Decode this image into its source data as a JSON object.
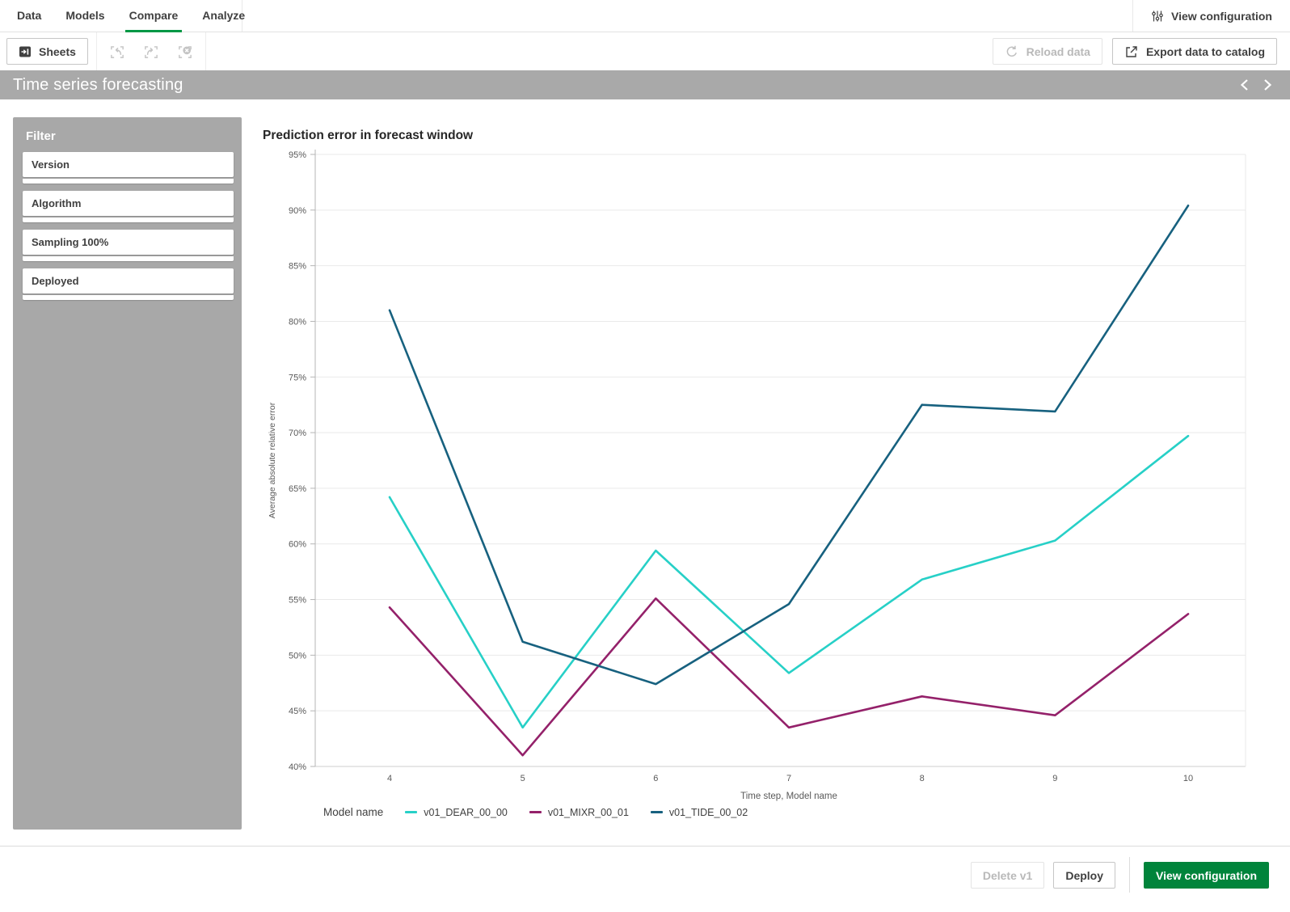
{
  "nav": {
    "tabs": [
      {
        "label": "Data",
        "active": false
      },
      {
        "label": "Models",
        "active": false
      },
      {
        "label": "Compare",
        "active": true
      },
      {
        "label": "Analyze",
        "active": false
      }
    ],
    "view_configuration_label": "View configuration"
  },
  "toolbar": {
    "sheets_label": "Sheets",
    "selection_tools": [
      "undo-selection",
      "redo-selection",
      "clear-selections"
    ],
    "reload_label": "Reload data",
    "export_label": "Export data to catalog"
  },
  "title_bar": {
    "title": "Time series forecasting"
  },
  "filter_panel": {
    "header": "Filter",
    "items": [
      {
        "label": "Version"
      },
      {
        "label": "Algorithm"
      },
      {
        "label": "Sampling 100%"
      },
      {
        "label": "Deployed"
      }
    ]
  },
  "chart_data": {
    "type": "line",
    "title": "Prediction error in forecast window",
    "xlabel": "Time step,  Model name",
    "ylabel": "Average absolute relative error",
    "legend_title": "Model name",
    "legend_position": "bottom",
    "grid": true,
    "x": [
      4,
      5,
      6,
      7,
      8,
      9,
      10
    ],
    "ylim": [
      40,
      95
    ],
    "ytick_step": 5,
    "ytick_suffix": "%",
    "series": [
      {
        "name": "v01_DEAR_00_00",
        "color": "#27d0c7",
        "values": [
          64.2,
          43.5,
          59.4,
          48.4,
          56.8,
          60.3,
          69.7
        ]
      },
      {
        "name": "v01_MIXR_00_01",
        "color": "#94216a",
        "values": [
          54.3,
          41.0,
          55.1,
          43.5,
          46.3,
          44.6,
          53.7
        ]
      },
      {
        "name": "v01_TIDE_00_02",
        "color": "#17617f",
        "values": [
          81.0,
          51.2,
          47.4,
          54.6,
          72.5,
          71.9,
          90.4
        ]
      }
    ]
  },
  "footer": {
    "delete_label": "Delete v1",
    "deploy_label": "Deploy",
    "view_configuration_label": "View configuration"
  },
  "colors": {
    "accent_green": "#009845",
    "button_green": "#00843b",
    "bar_gray": "#a9a9a9",
    "panel_gray": "#a8a8a8",
    "grid_line": "#e9e9e9",
    "axis_line": "#b5b5b5",
    "tick_text": "#595959"
  }
}
